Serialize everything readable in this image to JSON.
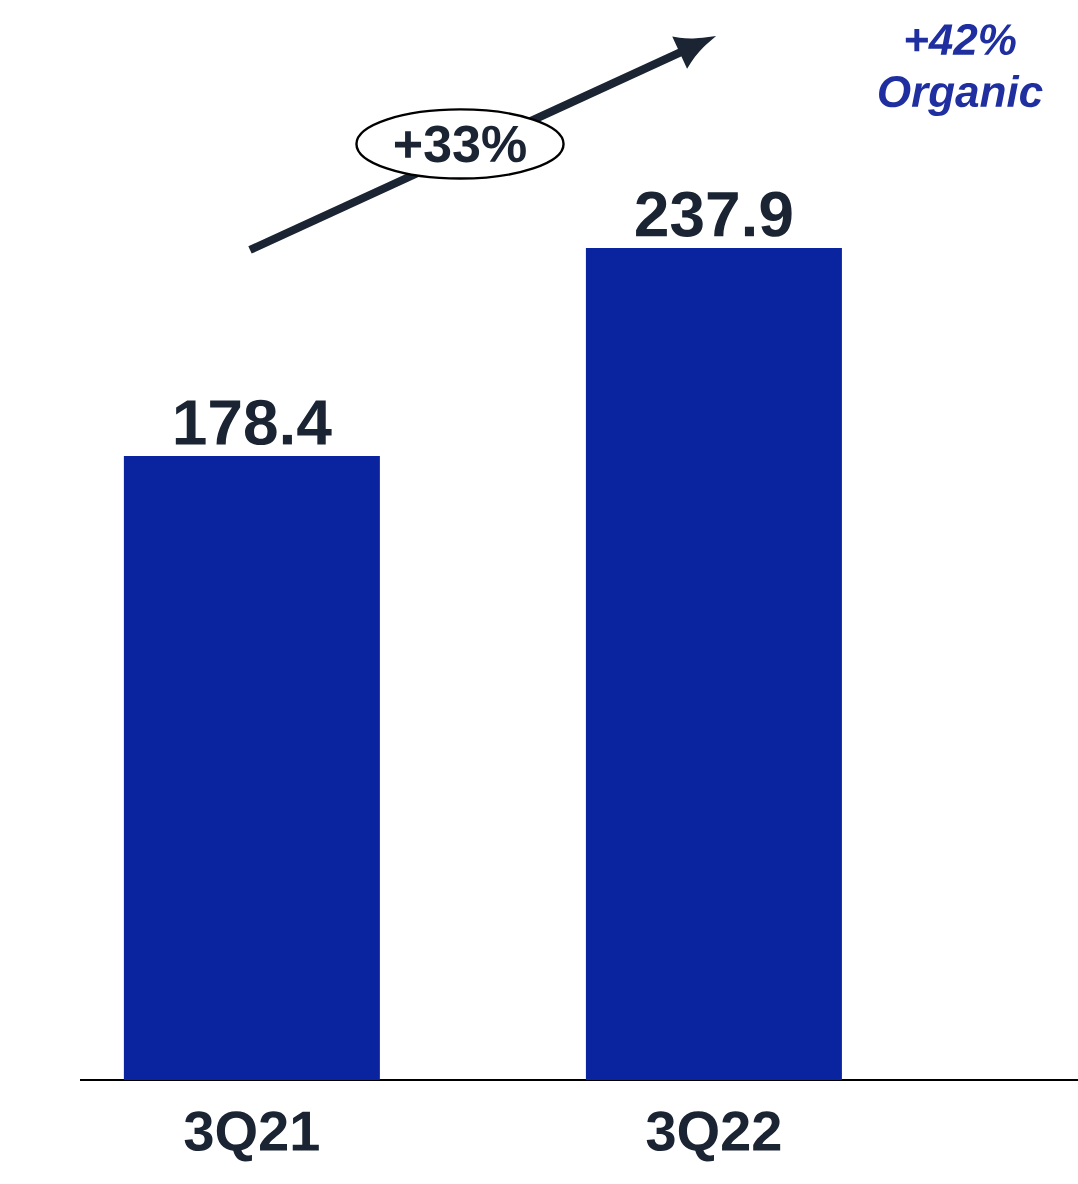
{
  "chart_data": {
    "type": "bar",
    "categories": [
      "3Q21",
      "3Q22"
    ],
    "values": [
      178.4,
      237.9
    ],
    "value_labels": [
      "178.4",
      "237.9"
    ],
    "color": "#0a24a0",
    "annotations": [
      "+33%",
      "+42% Organic"
    ]
  }
}
